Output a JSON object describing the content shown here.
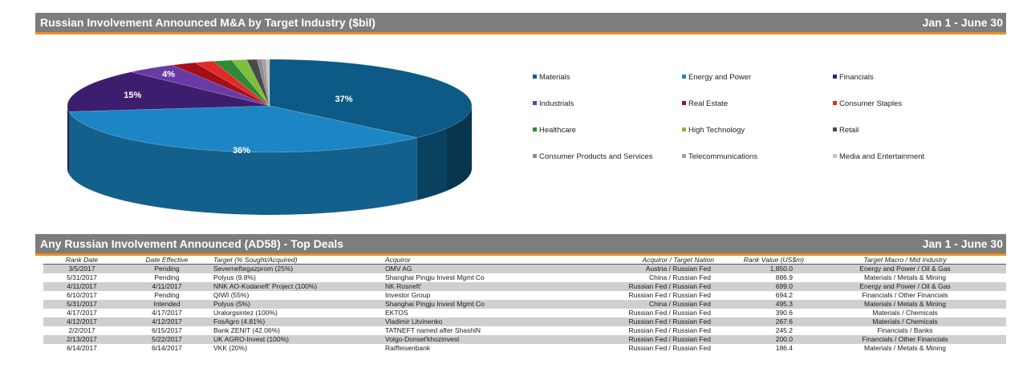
{
  "section1": {
    "title": "Russian Involvement Announced M&A by Target Industry ($bil)",
    "date_range": "Jan 1 - June 30"
  },
  "section2": {
    "title": "Any Russian Involvement Announced (AD58) - Top Deals",
    "date_range": "Jan 1 - June 30"
  },
  "chart_data": {
    "type": "pie",
    "title": "Russian Involvement Announced M&A by Target Industry ($bil)",
    "slices": [
      {
        "name": "Materials",
        "value": 37,
        "label": "37%",
        "color": "#0c5a85"
      },
      {
        "name": "Energy and Power",
        "value": 36,
        "label": "36%",
        "color": "#1c86c4"
      },
      {
        "name": "Financials",
        "value": 15,
        "label": "15%",
        "color": "#3d1e6e"
      },
      {
        "name": "Industrials",
        "value": 4,
        "label": "4%",
        "color": "#6a3aa4"
      },
      {
        "name": "Real Estate",
        "value": 2,
        "label": "",
        "color": "#a40e1a"
      },
      {
        "name": "Consumer Staples",
        "value": 1.5,
        "label": "",
        "color": "#e22a2a"
      },
      {
        "name": "Healthcare",
        "value": 1.5,
        "label": "",
        "color": "#2e8a36"
      },
      {
        "name": "High Technology",
        "value": 1.2,
        "label": "",
        "color": "#7fbf3a"
      },
      {
        "name": "Retail",
        "value": 0.8,
        "label": "",
        "color": "#4a4a4a"
      },
      {
        "name": "Consumer Products and Services",
        "value": 0.4,
        "label": "",
        "color": "#8c8c8c"
      },
      {
        "name": "Telecommunications",
        "value": 0.3,
        "label": "",
        "color": "#a0a0a0"
      },
      {
        "name": "Media and Entertainment",
        "value": 0.3,
        "label": "",
        "color": "#c4c4c4"
      }
    ],
    "legend_position": "right"
  },
  "table": {
    "headers": [
      "Rank Date",
      "Date Effective",
      "Target (% Sought/Acquired)",
      "Acquiror",
      "Acquiror / Target Nation",
      "Rank Value (US$m)",
      "Target Macro / Mid Industry"
    ],
    "rows": [
      [
        "3/5/2017",
        "Pending",
        "Severneftegazprom (25%)",
        "OMV AG",
        "Austria / Russian Fed",
        "1,850.0",
        "Energy and Power / Oil & Gas"
      ],
      [
        "5/31/2017",
        "Pending",
        "Polyus (9.8%)",
        "Shanghai Pingju Invest Mgmt Co",
        "China / Russian Fed",
        "886.9",
        "Materials / Metals & Mining"
      ],
      [
        "4/11/2017",
        "4/11/2017",
        "NNK AO-Kodaneft' Project (100%)",
        "NK Rosneft'",
        "Russian Fed / Russian Fed",
        "699.0",
        "Energy and Power / Oil & Gas"
      ],
      [
        "6/10/2017",
        "Pending",
        "QIWI (55%)",
        "Investor Group",
        "Russian Fed / Russian Fed",
        "694.2",
        "Financials / Other Financials"
      ],
      [
        "5/31/2017",
        "Intended",
        "Polyus (5%)",
        "Shanghai Pingju Invest Mgmt Co",
        "China / Russian Fed",
        "495.3",
        "Materials / Metals & Mining"
      ],
      [
        "4/17/2017",
        "4/17/2017",
        "Uralorgsintez (100%)",
        "EKTOS",
        "Russian Fed / Russian Fed",
        "390.6",
        "Materials / Chemicals"
      ],
      [
        "4/12/2017",
        "4/12/2017",
        "FosAgro (4.81%)",
        "Vladimir Litvinenko",
        "Russian Fed / Russian Fed",
        "267.6",
        "Materials / Chemicals"
      ],
      [
        "2/2/2017",
        "6/15/2017",
        "Bank ZENIT (42.06%)",
        "TATNEFT named after ShashiN",
        "Russian Fed / Russian Fed",
        "245.2",
        "Financials / Banks"
      ],
      [
        "2/13/2017",
        "5/22/2017",
        "UK AGRO-Invest (100%)",
        "Volgo-Donsel'khozinvest",
        "Russian Fed / Russian Fed",
        "200.0",
        "Financials / Other Financials"
      ],
      [
        "6/14/2017",
        "6/14/2017",
        "VKK (20%)",
        "Raiffeisenbank",
        "Russian Fed / Russian Fed",
        "186.4",
        "Materials / Metals & Mining"
      ]
    ]
  }
}
